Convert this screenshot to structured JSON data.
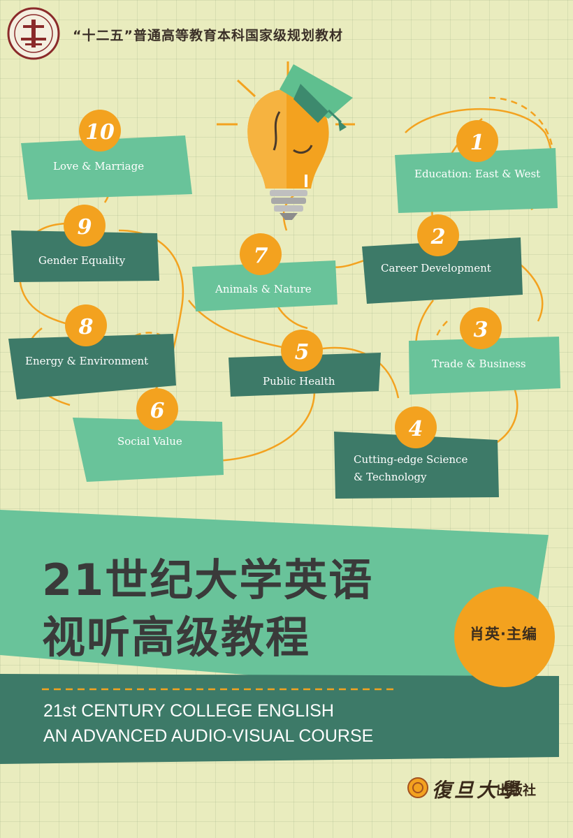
{
  "series_text": "“十二五”普通高等教育本科国家级规划教材",
  "seal": {
    "initials": "十",
    "ring_text": "十二五普通高等教育本科国家级规划教材"
  },
  "topics": [
    {
      "number": "1",
      "label": "Education: East & West"
    },
    {
      "number": "2",
      "label": "Career Development"
    },
    {
      "number": "3",
      "label": "Trade & Business"
    },
    {
      "number": "4",
      "label_line1": "Cutting-edge Science",
      "label_line2": "& Technology"
    },
    {
      "number": "5",
      "label": "Public Health"
    },
    {
      "number": "6",
      "label": "Social Value"
    },
    {
      "number": "7",
      "label": "Animals & Nature"
    },
    {
      "number": "8",
      "label": "Energy & Environment"
    },
    {
      "number": "9",
      "label": "Gender Equality"
    },
    {
      "number": "10",
      "label": "Love & Marriage"
    }
  ],
  "title_cn": {
    "line1": "21世纪大学英语",
    "line2": "视听高级教程"
  },
  "editor": "肖英·主编",
  "title_en": {
    "line1": "21st CENTURY COLLEGE ENGLISH",
    "line2": "AN ADVANCED AUDIO-VISUAL COURSE"
  },
  "publisher": {
    "name_script": "復旦大學",
    "house": "出版社"
  },
  "colors": {
    "background": "#e9ecbe",
    "dark_green": "#3d7a68",
    "light_green": "#69c39a",
    "orange": "#f3a21f",
    "bulb": "#f3a21f"
  }
}
